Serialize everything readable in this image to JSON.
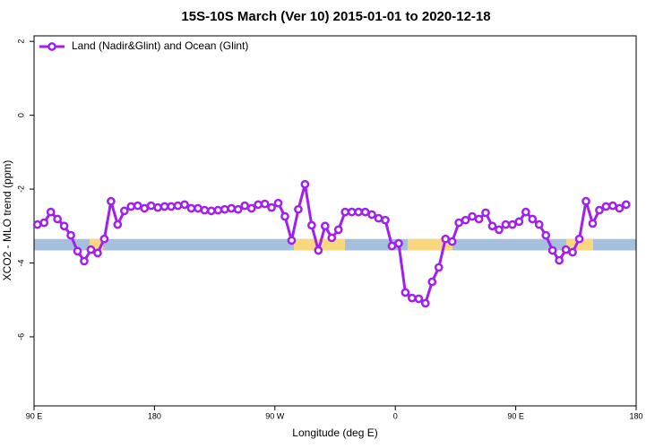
{
  "chart_data": {
    "type": "line",
    "title": "15S-10S March (Ver 10)   2015-01-01 to 2020-12-18",
    "x_label": "Longitude (deg E)",
    "y_label": "XCO2 - MLO trend (ppm)",
    "x": [
      92.5,
      97.5,
      102.5,
      107.5,
      112.5,
      117.5,
      122.5,
      127.5,
      132.5,
      137.5,
      142.5,
      147.5,
      152.5,
      157.5,
      162.5,
      167.5,
      172.5,
      177.5,
      182.5,
      187.5,
      192.5,
      197.5,
      202.5,
      207.5,
      212.5,
      217.5,
      222.5,
      227.5,
      232.5,
      237.5,
      242.5,
      247.5,
      252.5,
      257.5,
      262.5,
      267.5,
      272.5,
      277.5,
      282.5,
      287.5,
      292.5,
      297.5,
      302.5,
      307.5,
      312.5,
      317.5,
      322.5,
      327.5,
      332.5,
      337.5,
      342.5,
      347.5,
      352.5,
      357.5,
      362.5,
      367.5,
      372.5,
      377.5,
      382.5,
      387.5,
      392.5,
      397.5,
      402.5,
      407.5,
      412.5,
      417.5,
      422.5,
      427.5,
      432.5,
      437.5,
      442.5,
      447.5,
      452.5,
      457.5,
      462.5,
      467.5,
      472.5,
      477.5,
      482.5,
      487.5,
      492.5,
      497.5,
      502.5,
      507.5,
      512.5,
      517.5,
      522.5,
      527.5,
      532.5
    ],
    "series": [
      {
        "name": "Land (Nadir&Glint) and Ocean (Glint)",
        "color": "#a020f0",
        "values": [
          -2.96,
          -2.91,
          -2.62,
          -2.81,
          -3.0,
          -3.25,
          -3.68,
          -3.95,
          -3.64,
          -3.73,
          -3.35,
          -2.33,
          -2.96,
          -2.59,
          -2.47,
          -2.45,
          -2.52,
          -2.45,
          -2.5,
          -2.47,
          -2.47,
          -2.45,
          -2.42,
          -2.52,
          -2.52,
          -2.57,
          -2.59,
          -2.57,
          -2.55,
          -2.52,
          -2.55,
          -2.45,
          -2.52,
          -2.42,
          -2.4,
          -2.5,
          -2.38,
          -2.74,
          -3.39,
          -2.55,
          -1.87,
          -2.98,
          -3.66,
          -3.0,
          -3.32,
          -3.1,
          -2.62,
          -2.62,
          -2.62,
          -2.62,
          -2.69,
          -2.79,
          -2.84,
          -3.54,
          -3.47,
          -4.8,
          -4.95,
          -4.97,
          -5.09,
          -4.51,
          -4.12,
          -3.35,
          -3.42,
          -2.91,
          -2.84,
          -2.74,
          -2.81,
          -2.64,
          -3.0,
          -3.1,
          -2.96,
          -2.96,
          -2.88,
          -2.62,
          -2.81,
          -2.96,
          -3.25,
          -3.66,
          -3.93,
          -3.64,
          -3.71,
          -3.35,
          -2.33,
          -2.93,
          -2.57,
          -2.47,
          -2.45,
          -2.52,
          -2.42
        ]
      }
    ],
    "surface_band": {
      "y": [
        -3.66,
        -3.35
      ],
      "color": "#a5bfdd",
      "segments": [
        {
          "x": [
            131.5,
            141.6
          ],
          "color": "#f9d77e"
        },
        {
          "x": [
            284.2,
            322.4
          ],
          "color": "#f9d77e"
        },
        {
          "x": [
            369.2,
            402.7
          ],
          "color": "#f9d77e"
        },
        {
          "x": [
            487.8,
            507.9
          ],
          "color": "#f9d77e"
        }
      ]
    },
    "xlim": [
      90,
      540
    ],
    "xticks": [
      {
        "value": 90,
        "label": "90 E"
      },
      180,
      {
        "value": 270,
        "label": "90 W"
      },
      {
        "value": 360,
        "label": "0"
      },
      {
        "value": 450,
        "label": "90 E"
      },
      {
        "value": 540,
        "label": "180"
      }
    ],
    "ylim": [
      -7.87,
      2.15
    ],
    "yticks": [
      -6,
      -4,
      -2,
      0,
      2
    ],
    "legend": "top-left"
  }
}
